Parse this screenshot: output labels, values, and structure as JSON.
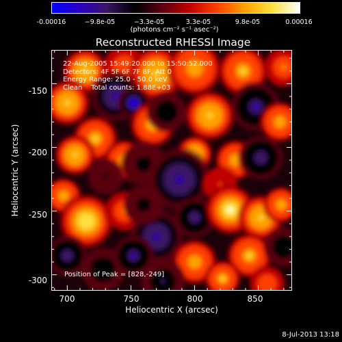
{
  "colorbar": {
    "ticks": [
      "-0.00016",
      "−9.8e-05",
      "−3.3e-05",
      "3.3e-05",
      "9.8e-05",
      "0.00016"
    ],
    "unit_label": "(photons cm⁻² s⁻¹ asec⁻²)",
    "colors": [
      "#0000ff",
      "#2a00c0",
      "#3a1464",
      "#000000",
      "#5a0010",
      "#c00000",
      "#ff4000",
      "#ffa000",
      "#ffe040",
      "#ffffff"
    ]
  },
  "info": {
    "line1": "22-Aug-2005 15:49:20.000 to 15:50:52.000",
    "line2": "Detectors: 4F 5F 6F 7F 8F, Att 0",
    "line3": "Energy Range: 25.0 - 50.0 keV",
    "line4": "Clean    Total counts: 1.88E+03",
    "peak": "Position of Peak = [828,-249]"
  },
  "footer": {
    "date": "8-Jul-2013 13:18"
  },
  "chart_data": {
    "type": "heatmap",
    "title": "Reconstructed RHESSI Image",
    "xlabel": "Heliocentric X (arcsec)",
    "ylabel": "Heliocentric Y (arcsec)",
    "xlim": [
      688,
      876
    ],
    "ylim": [
      -312,
      -124
    ],
    "xticks": [
      700,
      750,
      800,
      850
    ],
    "yticks": [
      -150,
      -200,
      -250,
      -300
    ],
    "color_range": [
      -0.00016,
      0.00016
    ],
    "peak": [
      828,
      -249
    ],
    "blobs": [
      {
        "x": 714,
        "y": -140,
        "v": 0.00012,
        "s": 10
      },
      {
        "x": 745,
        "y": -137,
        "v": 7e-05,
        "s": 10
      },
      {
        "x": 770,
        "y": -142,
        "v": 0.00012,
        "s": 12
      },
      {
        "x": 800,
        "y": -138,
        "v": 0.0001,
        "s": 12
      },
      {
        "x": 838,
        "y": -140,
        "v": 0.00011,
        "s": 11
      },
      {
        "x": 870,
        "y": -137,
        "v": 8e-05,
        "s": 9
      },
      {
        "x": 700,
        "y": -165,
        "v": 0.00012,
        "s": 10
      },
      {
        "x": 738,
        "y": -160,
        "v": -0.00012,
        "s": 11
      },
      {
        "x": 752,
        "y": -165,
        "v": -0.00016,
        "s": 7
      },
      {
        "x": 767,
        "y": -182,
        "v": 0.00011,
        "s": 10
      },
      {
        "x": 778,
        "y": -172,
        "v": -6e-05,
        "s": 9
      },
      {
        "x": 812,
        "y": -175,
        "v": 0.00012,
        "s": 11
      },
      {
        "x": 800,
        "y": -205,
        "v": 0.00013,
        "s": 8
      },
      {
        "x": 848,
        "y": -168,
        "v": -0.00011,
        "s": 11
      },
      {
        "x": 867,
        "y": -180,
        "v": 0.0001,
        "s": 9
      },
      {
        "x": 722,
        "y": -193,
        "v": 0.00011,
        "s": 10
      },
      {
        "x": 706,
        "y": -206,
        "v": 0.00013,
        "s": 9
      },
      {
        "x": 745,
        "y": -210,
        "v": 0.0001,
        "s": 9
      },
      {
        "x": 760,
        "y": -213,
        "v": -5e-05,
        "s": 10
      },
      {
        "x": 788,
        "y": -225,
        "v": -0.00012,
        "s": 14
      },
      {
        "x": 832,
        "y": -210,
        "v": 9e-05,
        "s": 9
      },
      {
        "x": 820,
        "y": -229,
        "v": 4e-05,
        "s": 8
      },
      {
        "x": 852,
        "y": -208,
        "v": -0.0001,
        "s": 10
      },
      {
        "x": 697,
        "y": -238,
        "v": 0.0001,
        "s": 8
      },
      {
        "x": 715,
        "y": -258,
        "v": 0.00014,
        "s": 12
      },
      {
        "x": 745,
        "y": -250,
        "v": 8e-05,
        "s": 9
      },
      {
        "x": 770,
        "y": -270,
        "v": -0.00012,
        "s": 12
      },
      {
        "x": 760,
        "y": -245,
        "v": -5e-05,
        "s": 9
      },
      {
        "x": 800,
        "y": -255,
        "v": -0.0001,
        "s": 9
      },
      {
        "x": 828,
        "y": -249,
        "v": 0.00016,
        "s": 11
      },
      {
        "x": 852,
        "y": -255,
        "v": 0.00012,
        "s": 10
      },
      {
        "x": 843,
        "y": -285,
        "v": 0.00011,
        "s": 10
      },
      {
        "x": 868,
        "y": -245,
        "v": 9e-05,
        "s": 8
      },
      {
        "x": 870,
        "y": -278,
        "v": -6e-05,
        "s": 9
      },
      {
        "x": 700,
        "y": -285,
        "v": -9e-05,
        "s": 9
      },
      {
        "x": 728,
        "y": -296,
        "v": -6e-05,
        "s": 10
      },
      {
        "x": 752,
        "y": -285,
        "v": -0.00011,
        "s": 9
      },
      {
        "x": 800,
        "y": -290,
        "v": 9e-05,
        "s": 10
      },
      {
        "x": 822,
        "y": -303,
        "v": 0.00011,
        "s": 8
      },
      {
        "x": 857,
        "y": -307,
        "v": 7e-05,
        "s": 8
      },
      {
        "x": 775,
        "y": -305,
        "v": -8e-05,
        "s": 10
      },
      {
        "x": 730,
        "y": -223,
        "v": -4e-05,
        "s": 8
      }
    ]
  }
}
